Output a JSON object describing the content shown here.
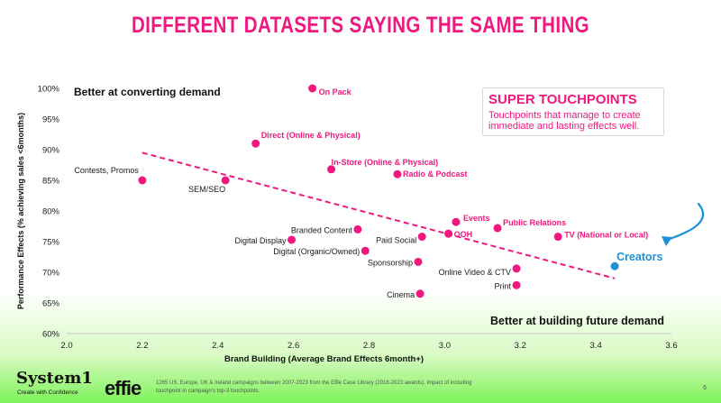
{
  "title": "DIFFERENT DATASETS SAYING THE SAME THING",
  "callout": {
    "heading": "SUPER TOUCHPOINTS",
    "body": "Touchpoints that manage to create immediate and lasting effects well."
  },
  "corner_labels": {
    "top_left": "Better at converting demand",
    "bottom_right": "Better at building future demand"
  },
  "footer": {
    "logo_system1": "System1",
    "logo_system1_tagline": "Create with Confidence",
    "logo_effie": "effie",
    "note": "1265 US, Europe, UK & Ireland campaigns between 2007-2023 from the Effie Case Library (2018-2023 awards). Impact of including touchpoint in campaign's top-3 touchpoints.",
    "page_number": "6"
  },
  "colors": {
    "accent": "#f0177f",
    "highlight": "#1e90d6",
    "text": "#111111"
  },
  "chart_data": {
    "type": "scatter",
    "xlabel": "Brand Building (Average Brand Effects 6month+)",
    "ylabel": "Performance Effects (% achieving sales <6months)",
    "xlim": [
      2.0,
      3.6
    ],
    "ylim": [
      60,
      100
    ],
    "x_ticks": [
      2.0,
      2.2,
      2.4,
      2.6,
      2.8,
      3.0,
      3.2,
      3.4,
      3.6
    ],
    "x_tick_labels": [
      "2.0",
      "2.2",
      "2.4",
      "2.6",
      "2.8",
      "3.0",
      "3.2",
      "3.4",
      "3.6"
    ],
    "y_ticks": [
      60,
      65,
      70,
      75,
      80,
      85,
      90,
      95,
      100
    ],
    "y_tick_labels": [
      "60%",
      "65%",
      "70%",
      "75%",
      "80%",
      "85%",
      "90%",
      "95%",
      "100%"
    ],
    "grid": false,
    "trendline": {
      "x": [
        2.2,
        3.45
      ],
      "y": [
        89.5,
        69.0
      ]
    },
    "points": [
      {
        "label": "On Pack",
        "x": 2.65,
        "y": 100,
        "super": true
      },
      {
        "label": "Direct (Online & Physical)",
        "x": 2.5,
        "y": 91,
        "super": true
      },
      {
        "label": "In-Store (Online & Physical)",
        "x": 2.7,
        "y": 86.8,
        "super": true
      },
      {
        "label": "Radio & Podcast",
        "x": 2.875,
        "y": 86,
        "super": true
      },
      {
        "label": "Contests, Promos",
        "x": 2.2,
        "y": 85,
        "super": false
      },
      {
        "label": "SEM/SEO",
        "x": 2.42,
        "y": 85,
        "super": false
      },
      {
        "label": "Events",
        "x": 3.03,
        "y": 78.2,
        "super": true
      },
      {
        "label": "Public Relations",
        "x": 3.14,
        "y": 77.2,
        "super": true
      },
      {
        "label": "Branded Content",
        "x": 2.77,
        "y": 77,
        "super": false
      },
      {
        "label": "TV (National or Local)",
        "x": 3.3,
        "y": 75.8,
        "super": true
      },
      {
        "label": "OOH",
        "x": 3.01,
        "y": 76.3,
        "super": true
      },
      {
        "label": "Paid Social",
        "x": 2.94,
        "y": 75.8,
        "super": false
      },
      {
        "label": "Digital Display",
        "x": 2.595,
        "y": 75.3,
        "super": false
      },
      {
        "label": "Digital (Organic/Owned)",
        "x": 2.79,
        "y": 73.5,
        "super": false
      },
      {
        "label": "Sponsorship",
        "x": 2.93,
        "y": 71.7,
        "super": false
      },
      {
        "label": "Online Video & CTV",
        "x": 3.19,
        "y": 70.6,
        "super": false
      },
      {
        "label": "Print",
        "x": 3.19,
        "y": 67.9,
        "super": false
      },
      {
        "label": "Cinema",
        "x": 2.935,
        "y": 66.5,
        "super": false
      },
      {
        "label": "Creators",
        "x": 3.45,
        "y": 71,
        "super": true,
        "highlight": true
      }
    ]
  }
}
